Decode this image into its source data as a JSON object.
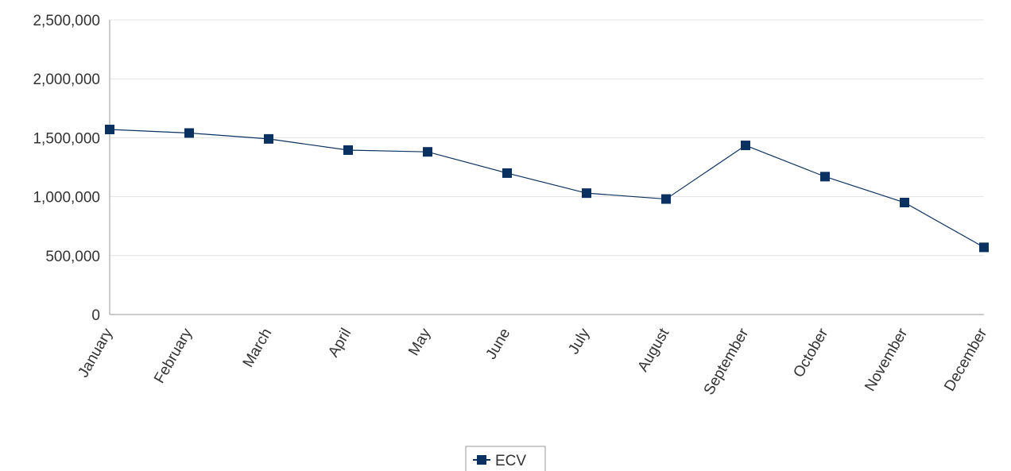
{
  "chart_data": {
    "type": "line",
    "categories": [
      "January",
      "February",
      "March",
      "April",
      "May",
      "June",
      "July",
      "August",
      "September",
      "October",
      "November",
      "December"
    ],
    "series": [
      {
        "name": "ECV",
        "color": "#0b3160",
        "values": [
          1570000,
          1540000,
          1490000,
          1395000,
          1380000,
          1200000,
          1030000,
          980000,
          1435000,
          1170000,
          950000,
          570000
        ]
      }
    ],
    "ylim": [
      0,
      2500000
    ],
    "yticks": [
      0,
      {
        "value": 500000,
        "label": "500,000"
      },
      {
        "value": 1000000,
        "label": "1,000,000"
      },
      {
        "value": 1500000,
        "label": "1,500,000"
      },
      {
        "value": 2000000,
        "label": "2,000,000"
      },
      {
        "value": 2500000,
        "label": "2,500,000"
      }
    ],
    "grid": true,
    "legend": "bottom"
  }
}
